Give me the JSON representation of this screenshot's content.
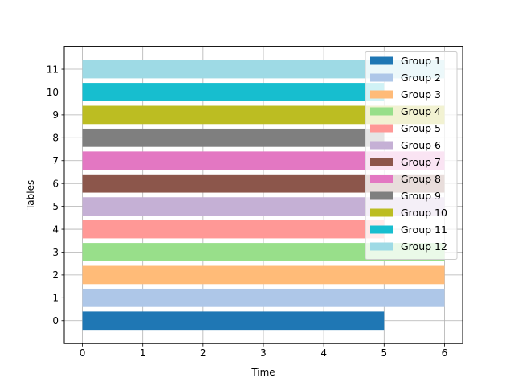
{
  "chart_data": {
    "type": "bar",
    "orientation": "horizontal",
    "title": "",
    "xlabel": "Time",
    "ylabel": "Tables",
    "xlim": [
      -0.3,
      6.3
    ],
    "ylim": [
      -1,
      12
    ],
    "xticks": [
      "0",
      "1",
      "2",
      "3",
      "4",
      "5",
      "6"
    ],
    "yticks": [
      "0",
      "1",
      "2",
      "3",
      "4",
      "5",
      "6",
      "7",
      "8",
      "9",
      "10",
      "11"
    ],
    "grid": true,
    "legend_position": "top-right",
    "series": [
      {
        "name": "Group 1",
        "table": 0,
        "start": 0,
        "end": 5,
        "color": "#1f77b4"
      },
      {
        "name": "Group 2",
        "table": 1,
        "start": 0,
        "end": 6,
        "color": "#aec7e8"
      },
      {
        "name": "Group 3",
        "table": 2,
        "start": 0,
        "end": 6,
        "color": "#ffbb78"
      },
      {
        "name": "Group 4",
        "table": 3,
        "start": 0,
        "end": 6,
        "color": "#98df8a"
      },
      {
        "name": "Group 5",
        "table": 4,
        "start": 0,
        "end": 5,
        "color": "#ff9896"
      },
      {
        "name": "Group 6",
        "table": 5,
        "start": 0,
        "end": 6,
        "color": "#c5b0d5"
      },
      {
        "name": "Group 7",
        "table": 6,
        "start": 0,
        "end": 6,
        "color": "#8c564b"
      },
      {
        "name": "Group 8",
        "table": 7,
        "start": 0,
        "end": 6,
        "color": "#e377c2"
      },
      {
        "name": "Group 9",
        "table": 8,
        "start": 0,
        "end": 5,
        "color": "#7f7f7f"
      },
      {
        "name": "Group 10",
        "table": 9,
        "start": 0,
        "end": 6,
        "color": "#bcbd22"
      },
      {
        "name": "Group 11",
        "table": 10,
        "start": 0,
        "end": 5,
        "color": "#17becf"
      },
      {
        "name": "Group 12",
        "table": 11,
        "start": 0,
        "end": 6,
        "color": "#9edae5"
      }
    ]
  }
}
